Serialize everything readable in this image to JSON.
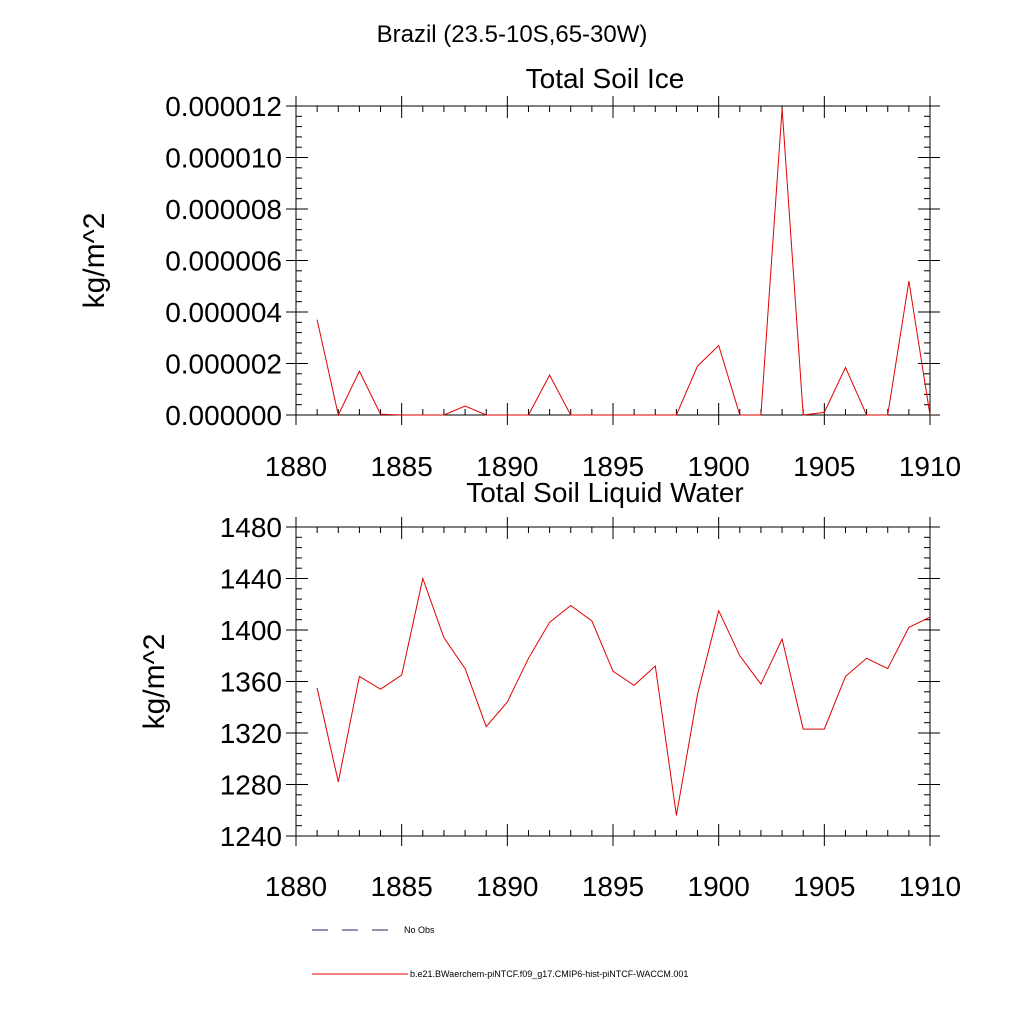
{
  "figure": {
    "title": "Brazil (23.5-10S,65-30W)",
    "legend": [
      {
        "label": "No Obs",
        "style": "dashed",
        "color": "#1f2a6b"
      },
      {
        "label": "b.e21.BWaerchem-piNTCF.f09_g17.CMIP6-hist-piNTCF-WACCM.001",
        "style": "solid",
        "color": "#e00000"
      }
    ]
  },
  "chart_data": [
    {
      "type": "line",
      "title": "Total Soil Ice",
      "xlabel": "",
      "ylabel": "kg/m^2",
      "xlim": [
        1880,
        1910
      ],
      "ylim": [
        0,
        1.2e-05
      ],
      "xticks": [
        1880,
        1885,
        1890,
        1895,
        1900,
        1905,
        1910
      ],
      "xtick_labels": [
        "1880",
        "1885",
        "1890",
        "1895",
        "1900",
        "1905",
        "1910"
      ],
      "yticks": [
        0,
        2e-06,
        4e-06,
        6e-06,
        8e-06,
        1e-05,
        1.2e-05
      ],
      "ytick_labels": [
        "0.000000",
        "0.000002",
        "0.000004",
        "0.000006",
        "0.000008",
        "0.000010",
        "0.000012"
      ],
      "grid": false,
      "series": [
        {
          "name": "b.e21.BWaerchem-piNTCF.f09_g17.CMIP6-hist-piNTCF-WACCM.001",
          "color": "#e00000",
          "x": [
            1881,
            1882,
            1883,
            1884,
            1885,
            1886,
            1887,
            1888,
            1889,
            1890,
            1891,
            1892,
            1893,
            1894,
            1895,
            1896,
            1897,
            1898,
            1899,
            1900,
            1901,
            1902,
            1903,
            1904,
            1905,
            1906,
            1907,
            1908,
            1909,
            1910
          ],
          "y": [
            3.7e-06,
            0.0,
            1.7e-06,
            3e-08,
            0.0,
            0.0,
            0.0,
            3.5e-07,
            0.0,
            0.0,
            0.0,
            1.55e-06,
            0.0,
            0.0,
            0.0,
            0.0,
            0.0,
            0.0,
            1.9e-06,
            2.7e-06,
            0.0,
            0.0,
            1.19e-05,
            0.0,
            1e-07,
            1.85e-06,
            0.0,
            0.0,
            5.2e-06,
            0.0
          ]
        }
      ]
    },
    {
      "type": "line",
      "title": "Total Soil Liquid Water",
      "xlabel": "",
      "ylabel": "kg/m^2",
      "xlim": [
        1880,
        1910
      ],
      "ylim": [
        1240,
        1480
      ],
      "xticks": [
        1880,
        1885,
        1890,
        1895,
        1900,
        1905,
        1910
      ],
      "xtick_labels": [
        "1880",
        "1885",
        "1890",
        "1895",
        "1900",
        "1905",
        "1910"
      ],
      "yticks": [
        1240,
        1280,
        1320,
        1360,
        1400,
        1440,
        1480
      ],
      "ytick_labels": [
        "1240",
        "1280",
        "1320",
        "1360",
        "1400",
        "1440",
        "1480"
      ],
      "grid": false,
      "series": [
        {
          "name": "b.e21.BWaerchem-piNTCF.f09_g17.CMIP6-hist-piNTCF-WACCM.001",
          "color": "#e00000",
          "x": [
            1881,
            1882,
            1883,
            1884,
            1885,
            1886,
            1887,
            1888,
            1889,
            1890,
            1891,
            1892,
            1893,
            1894,
            1895,
            1896,
            1897,
            1898,
            1899,
            1900,
            1901,
            1902,
            1903,
            1904,
            1905,
            1906,
            1907,
            1908,
            1909,
            1910
          ],
          "y": [
            1355,
            1282,
            1364,
            1354,
            1365,
            1440,
            1394,
            1370,
            1325,
            1344,
            1378,
            1406,
            1419,
            1407,
            1368,
            1357,
            1372,
            1256,
            1350,
            1415,
            1380,
            1358,
            1393,
            1323,
            1323,
            1364,
            1378,
            1370,
            1402,
            1410
          ]
        }
      ]
    }
  ]
}
